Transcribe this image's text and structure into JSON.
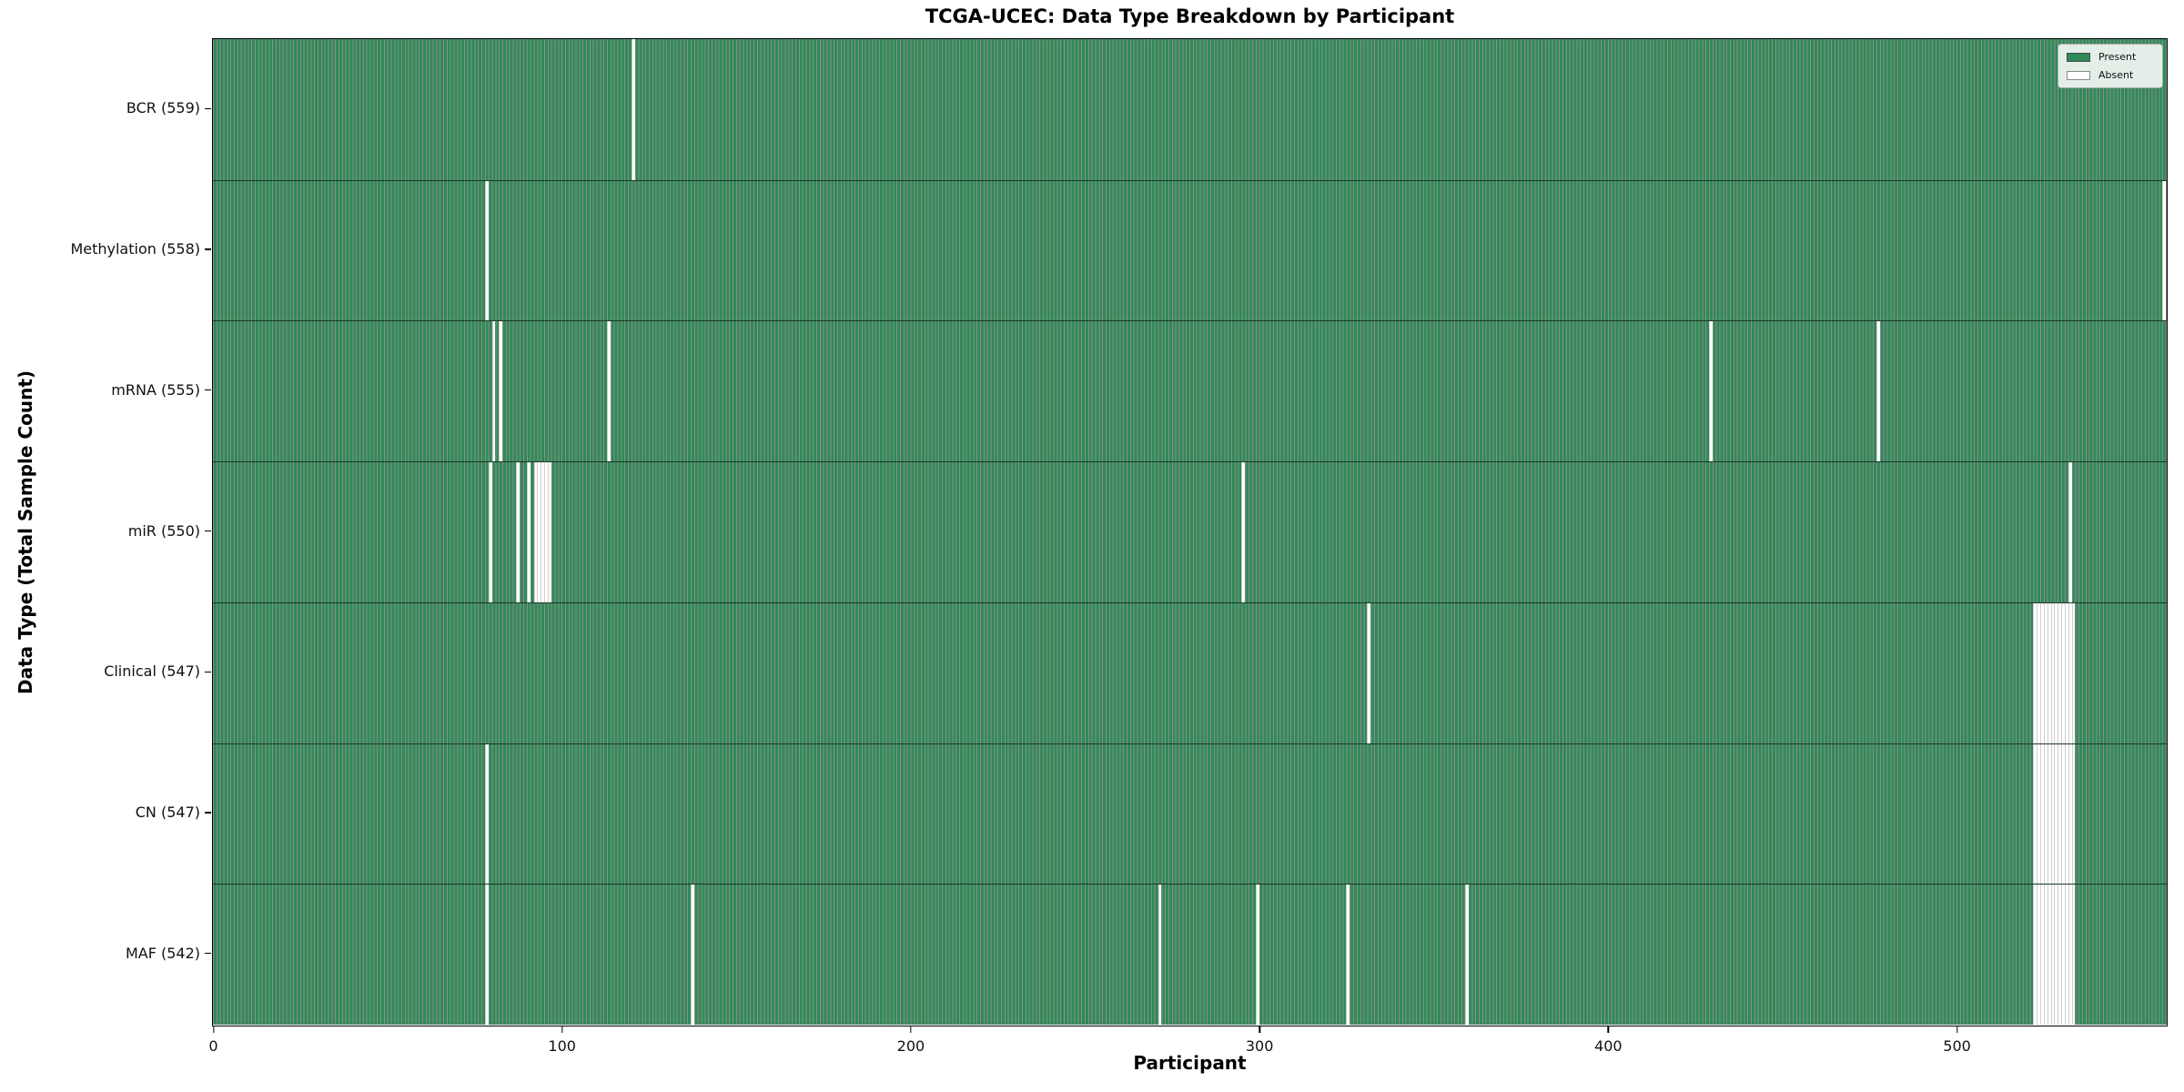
{
  "chart_data": {
    "type": "heatmap",
    "title": "TCGA-UCEC: Data Type Breakdown by Participant",
    "xlabel": "Participant",
    "ylabel": "Data Type (Total Sample Count)",
    "legend": {
      "entries": [
        "Present",
        "Absent"
      ],
      "position": "upper right"
    },
    "colors": {
      "present": "#2e8b57",
      "absent": "#ffffff",
      "bar_edge": "rgba(0,0,0,0.45)",
      "row_divider": "rgba(0,0,0,0.6)",
      "plot_border": "#000000"
    },
    "x_ticks": [
      0,
      100,
      200,
      300,
      400,
      500
    ],
    "x_range": [
      0,
      560
    ],
    "n_participants": 560,
    "grid": false,
    "rows": [
      {
        "label": "BCR (559)",
        "name": "BCR",
        "present_count": 559,
        "absent": [
          120
        ]
      },
      {
        "label": "Methylation (558)",
        "name": "Methylation",
        "present_count": 558,
        "absent": [
          78,
          559
        ]
      },
      {
        "label": "mRNA (555)",
        "name": "mRNA",
        "present_count": 555,
        "absent": [
          80,
          82,
          113,
          429,
          477
        ]
      },
      {
        "label": "miR (550)",
        "name": "miR",
        "present_count": 550,
        "absent": [
          79,
          87,
          90,
          92,
          93,
          94,
          95,
          96,
          295,
          532
        ]
      },
      {
        "label": "Clinical (547)",
        "name": "Clinical",
        "present_count": 547,
        "absent": [
          331,
          522,
          523,
          524,
          525,
          526,
          527,
          528,
          529,
          530,
          531,
          532,
          533
        ]
      },
      {
        "label": "CN (547)",
        "name": "CN",
        "present_count": 547,
        "absent": [
          78,
          522,
          523,
          524,
          525,
          526,
          527,
          528,
          529,
          530,
          531,
          532,
          533
        ]
      },
      {
        "label": "MAF (542)",
        "name": "MAF",
        "present_count": 542,
        "absent": [
          78,
          137,
          271,
          299,
          325,
          359,
          522,
          523,
          524,
          525,
          526,
          527,
          528,
          529,
          530,
          531,
          532,
          533
        ]
      }
    ]
  }
}
